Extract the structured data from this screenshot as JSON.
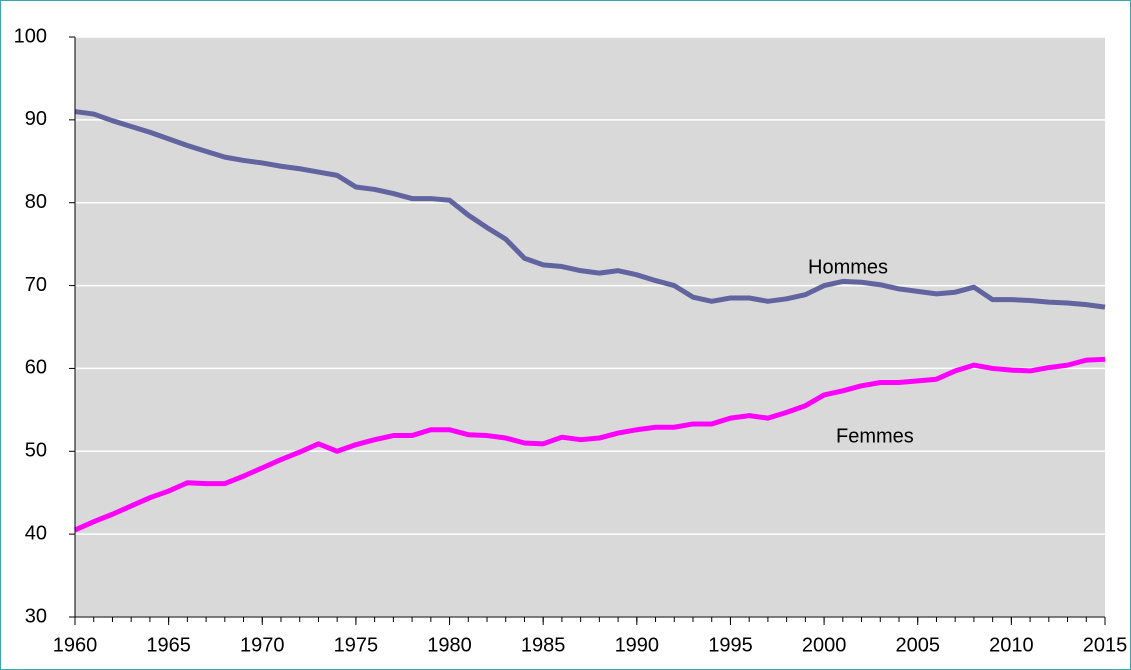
{
  "chart_data": {
    "type": "line",
    "x": [
      1960,
      1961,
      1962,
      1963,
      1964,
      1965,
      1966,
      1967,
      1968,
      1969,
      1970,
      1971,
      1972,
      1973,
      1974,
      1975,
      1976,
      1977,
      1978,
      1979,
      1980,
      1981,
      1982,
      1983,
      1984,
      1985,
      1986,
      1987,
      1988,
      1989,
      1990,
      1991,
      1992,
      1993,
      1994,
      1995,
      1996,
      1997,
      1998,
      1999,
      2000,
      2001,
      2002,
      2003,
      2004,
      2005,
      2006,
      2007,
      2008,
      2009,
      2010,
      2011,
      2012,
      2013,
      2014,
      2015
    ],
    "series": [
      {
        "name": "Hommes",
        "color": "#6264a0",
        "values": [
          91.0,
          90.7,
          89.9,
          89.2,
          88.5,
          87.7,
          86.9,
          86.2,
          85.5,
          85.1,
          84.8,
          84.4,
          84.1,
          83.7,
          83.3,
          81.9,
          81.6,
          81.1,
          80.5,
          80.5,
          80.3,
          78.5,
          77.0,
          75.6,
          73.3,
          72.5,
          72.3,
          71.8,
          71.5,
          71.8,
          71.3,
          70.6,
          70.0,
          68.6,
          68.1,
          68.5,
          68.5,
          68.1,
          68.4,
          68.9,
          70.0,
          70.5,
          70.4,
          70.1,
          69.6,
          69.3,
          69.0,
          69.2,
          69.8,
          68.3,
          68.3,
          68.2,
          68.0,
          67.9,
          67.7,
          67.4
        ]
      },
      {
        "name": "Femmes",
        "color": "#ff00ff",
        "values": [
          40.5,
          41.5,
          42.4,
          43.4,
          44.4,
          45.2,
          46.2,
          46.1,
          46.1,
          47.0,
          48.0,
          49.0,
          49.9,
          50.9,
          50.0,
          50.8,
          51.4,
          51.9,
          51.9,
          52.6,
          52.6,
          52.0,
          51.9,
          51.6,
          51.0,
          50.9,
          51.7,
          51.4,
          51.6,
          52.2,
          52.6,
          52.9,
          52.9,
          53.3,
          53.3,
          54.0,
          54.3,
          54.0,
          54.7,
          55.5,
          56.8,
          57.3,
          57.9,
          58.3,
          58.3,
          58.5,
          58.7,
          59.7,
          60.4,
          60.0,
          59.8,
          59.7,
          60.1,
          60.4,
          61.0,
          61.1
        ]
      }
    ],
    "xlim": [
      1960,
      2015
    ],
    "xticks": [
      1960,
      1965,
      1970,
      1975,
      1980,
      1985,
      1990,
      1995,
      2000,
      2005,
      2010,
      2015
    ],
    "ylim": [
      30,
      100
    ],
    "yticks": [
      30,
      40,
      50,
      60,
      70,
      80,
      90,
      100
    ],
    "grid": true
  }
}
